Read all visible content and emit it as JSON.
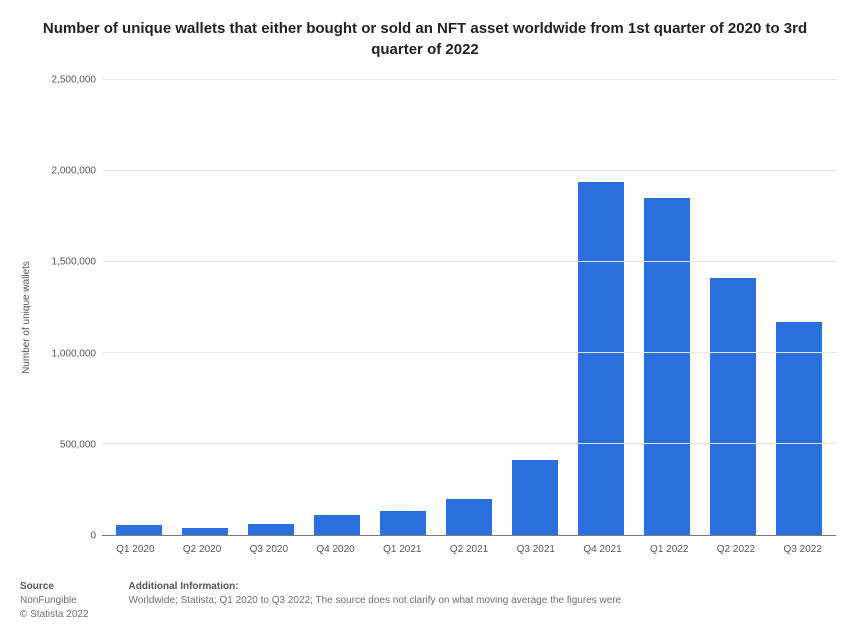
{
  "title": "Number of unique wallets that either bought or sold an NFT asset worldwide from 1st quarter of 2020 to 3rd quarter of 2022",
  "chart": {
    "type": "bar",
    "y_label": "Number of unique wallets",
    "y_max": 2500000,
    "y_ticks": [
      0,
      500000,
      1000000,
      1500000,
      2000000,
      2500000
    ],
    "y_tick_labels": [
      "0",
      "500,000",
      "1,000,000",
      "1,500,000",
      "2,000,000",
      "2,500,000"
    ],
    "categories": [
      "Q1 2020",
      "Q2 2020",
      "Q3 2020",
      "Q4 2020",
      "Q1 2021",
      "Q2 2021",
      "Q3 2021",
      "Q4 2021",
      "Q1 2022",
      "Q2 2022",
      "Q3 2022"
    ],
    "values": [
      55000,
      40000,
      60000,
      110000,
      130000,
      200000,
      410000,
      1940000,
      1850000,
      1410000,
      1170000
    ],
    "bar_color": "#2a6fdb",
    "grid_color": "#e6e6e6",
    "axis_color": "#777777",
    "background_color": "#ffffff",
    "bar_width_ratio": 0.7,
    "title_fontsize": 15,
    "tick_fontsize": 10,
    "ylabel_fontsize": 10
  },
  "footer": {
    "source_label": "Source",
    "source_name": "NonFungible",
    "copyright": "© Statista 2022",
    "addl_label": "Additional Information:",
    "addl_text": "Worldwide; Statista; Q1 2020 to Q3 2022; The source does not clarify on what moving average the figures were"
  }
}
